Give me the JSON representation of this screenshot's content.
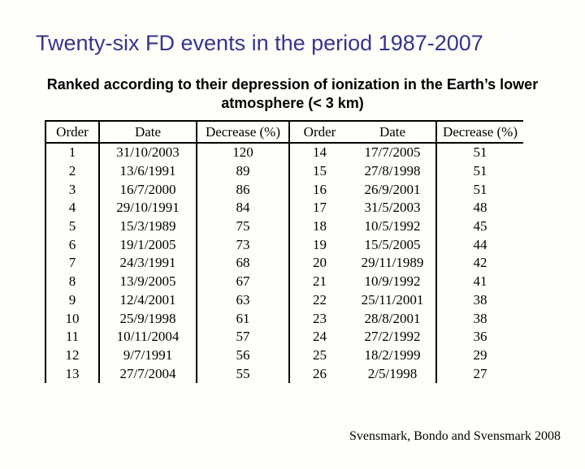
{
  "slide": {
    "title": "Twenty-six FD events in the period 1987-2007",
    "subtitle_line1": "Ranked according to their depression of ionization in the Earth’s lower",
    "subtitle_line2": "atmosphere (< 3 km)",
    "citation": "Svensmark, Bondo and Svensmark 2008"
  },
  "colors": {
    "title_text": "#35358d",
    "body_text": "#000000",
    "background": "#fffffa",
    "table_rules": "#000000"
  },
  "table": {
    "headers": [
      "Order",
      "Date",
      "Decrease (%)",
      "Order",
      "Date",
      "Decrease (%)"
    ],
    "left_rows": [
      {
        "order": "1",
        "date": "31/10/2003",
        "decrease": "120",
        "bold": true
      },
      {
        "order": "2",
        "date": "13/6/1991",
        "decrease": "89",
        "bold": false
      },
      {
        "order": "3",
        "date": "16/7/2000",
        "decrease": "86",
        "bold": true
      },
      {
        "order": "4",
        "date": "29/10/1991",
        "decrease": "84",
        "bold": false
      },
      {
        "order": "5",
        "date": "15/3/1989",
        "decrease": "75",
        "bold": false
      },
      {
        "order": "6",
        "date": "19/1/2005",
        "decrease": "73",
        "bold": true
      },
      {
        "order": "7",
        "date": "24/3/1991",
        "decrease": "68",
        "bold": false
      },
      {
        "order": "8",
        "date": "13/9/2005",
        "decrease": "67",
        "bold": true
      },
      {
        "order": "9",
        "date": "12/4/2001",
        "decrease": "63",
        "bold": true
      },
      {
        "order": "10",
        "date": "25/9/1998",
        "decrease": "61",
        "bold": true
      },
      {
        "order": "11",
        "date": "10/11/2004",
        "decrease": "57",
        "bold": true
      },
      {
        "order": "12",
        "date": "9/7/1991",
        "decrease": "56",
        "bold": false
      },
      {
        "order": "13",
        "date": "27/7/2004",
        "decrease": "55",
        "bold": true
      }
    ],
    "right_rows": [
      {
        "order": "14",
        "date": "17/7/2005",
        "decrease": "51",
        "bold": true
      },
      {
        "order": "15",
        "date": "27/8/1998",
        "decrease": "51",
        "bold": true
      },
      {
        "order": "16",
        "date": "26/9/2001",
        "decrease": "51",
        "bold": true
      },
      {
        "order": "17",
        "date": "31/5/2003",
        "decrease": "48",
        "bold": true
      },
      {
        "order": "18",
        "date": "10/5/1992",
        "decrease": "45",
        "bold": false
      },
      {
        "order": "19",
        "date": "15/5/2005",
        "decrease": "44",
        "bold": true
      },
      {
        "order": "20",
        "date": "29/11/1989",
        "decrease": "42",
        "bold": false
      },
      {
        "order": "21",
        "date": "10/9/1992",
        "decrease": "41",
        "bold": false
      },
      {
        "order": "22",
        "date": "25/11/2001",
        "decrease": "38",
        "bold": true
      },
      {
        "order": "23",
        "date": "28/8/2001",
        "decrease": "38",
        "bold": true
      },
      {
        "order": "24",
        "date": "27/2/1992",
        "decrease": "36",
        "bold": false
      },
      {
        "order": "25",
        "date": "18/2/1999",
        "decrease": "29",
        "bold": true
      },
      {
        "order": "26",
        "date": "2/5/1998",
        "decrease": "27",
        "bold": true
      }
    ]
  }
}
